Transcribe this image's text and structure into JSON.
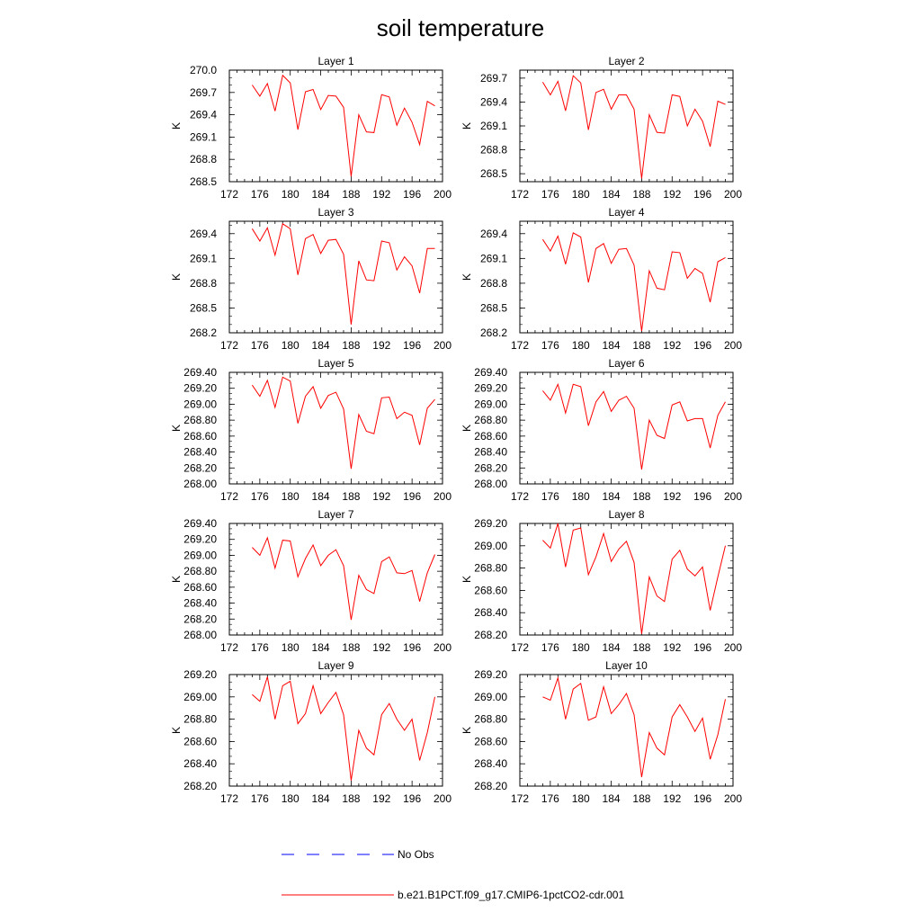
{
  "title": "soil temperature",
  "legend": [
    {
      "label": "No Obs",
      "color": "#0000ff",
      "dash": "dashed"
    },
    {
      "label": "b.e21.B1PCT.f09_g17.CMIP6-1pctCO2-cdr.001",
      "color": "#ff0000",
      "dash": "solid"
    }
  ],
  "chart_data": [
    {
      "type": "line",
      "title": "Layer 1",
      "ylabel": "K",
      "xlim": [
        172,
        200
      ],
      "ylim": [
        268.5,
        270.0
      ],
      "xticks": [
        "172",
        "176",
        "180",
        "184",
        "188",
        "192",
        "196",
        "200"
      ],
      "yticks": [
        "268.5",
        "268.8",
        "269.1",
        "269.4",
        "269.7",
        "270.0"
      ],
      "series": [
        {
          "name": "b.e21.B1PCT.f09_g17.CMIP6-1pctCO2-cdr.001",
          "color": "#ff0000",
          "x": [
            175,
            176,
            177,
            178,
            179,
            180,
            181,
            182,
            183,
            184,
            185,
            186,
            187,
            188,
            189,
            190,
            191,
            192,
            193,
            194,
            195,
            196,
            197,
            198,
            199
          ],
          "y": [
            269.8,
            269.65,
            269.82,
            269.45,
            269.93,
            269.83,
            269.2,
            269.71,
            269.74,
            269.47,
            269.66,
            269.65,
            269.5,
            268.57,
            269.4,
            269.17,
            269.16,
            269.67,
            269.64,
            269.26,
            269.49,
            269.3,
            269.0,
            269.58,
            269.52
          ]
        }
      ]
    },
    {
      "type": "line",
      "title": "Layer 2",
      "ylabel": "K",
      "xlim": [
        172,
        200
      ],
      "ylim": [
        268.4,
        269.8
      ],
      "xticks": [
        "172",
        "176",
        "180",
        "184",
        "188",
        "192",
        "196",
        "200"
      ],
      "yticks": [
        "268.5",
        "268.8",
        "269.1",
        "269.4",
        "269.7"
      ],
      "series": [
        {
          "name": "b.e21.B1PCT.f09_g17.CMIP6-1pctCO2-cdr.001",
          "color": "#ff0000",
          "x": [
            175,
            176,
            177,
            178,
            179,
            180,
            181,
            182,
            183,
            184,
            185,
            186,
            187,
            188,
            189,
            190,
            191,
            192,
            193,
            194,
            195,
            196,
            197,
            198,
            199
          ],
          "y": [
            269.65,
            269.49,
            269.66,
            269.29,
            269.73,
            269.64,
            269.05,
            269.52,
            269.56,
            269.31,
            269.49,
            269.49,
            269.31,
            268.44,
            269.24,
            269.02,
            269.01,
            269.49,
            269.47,
            269.1,
            269.31,
            269.16,
            268.84,
            269.41,
            269.37
          ]
        }
      ]
    },
    {
      "type": "line",
      "title": "Layer 3",
      "ylabel": "K",
      "xlim": [
        172,
        200
      ],
      "ylim": [
        268.2,
        269.55
      ],
      "xticks": [
        "172",
        "176",
        "180",
        "184",
        "188",
        "192",
        "196",
        "200"
      ],
      "yticks": [
        "268.2",
        "268.5",
        "268.8",
        "269.1",
        "269.4"
      ],
      "series": [
        {
          "name": "b.e21.B1PCT.f09_g17.CMIP6-1pctCO2-cdr.001",
          "color": "#ff0000",
          "x": [
            175,
            176,
            177,
            178,
            179,
            180,
            181,
            182,
            183,
            184,
            185,
            186,
            187,
            188,
            189,
            190,
            191,
            192,
            193,
            194,
            195,
            196,
            197,
            198,
            199
          ],
          "y": [
            269.46,
            269.31,
            269.47,
            269.14,
            269.52,
            269.46,
            268.9,
            269.34,
            269.39,
            269.16,
            269.32,
            269.33,
            269.15,
            268.3,
            269.07,
            268.84,
            268.83,
            269.31,
            269.29,
            268.96,
            269.12,
            269.01,
            268.68,
            269.22,
            269.22
          ]
        }
      ]
    },
    {
      "type": "line",
      "title": "Layer 4",
      "ylabel": "K",
      "xlim": [
        172,
        200
      ],
      "ylim": [
        268.2,
        269.55
      ],
      "xticks": [
        "172",
        "176",
        "180",
        "184",
        "188",
        "192",
        "196",
        "200"
      ],
      "yticks": [
        "268.2",
        "268.5",
        "268.8",
        "269.1",
        "269.4"
      ],
      "series": [
        {
          "name": "b.e21.B1PCT.f09_g17.CMIP6-1pctCO2-cdr.001",
          "color": "#ff0000",
          "x": [
            175,
            176,
            177,
            178,
            179,
            180,
            181,
            182,
            183,
            184,
            185,
            186,
            187,
            188,
            189,
            190,
            191,
            192,
            193,
            194,
            195,
            196,
            197,
            198,
            199
          ],
          "y": [
            269.33,
            269.19,
            269.37,
            269.03,
            269.41,
            269.36,
            268.81,
            269.22,
            269.28,
            269.04,
            269.21,
            269.22,
            269.02,
            268.22,
            268.95,
            268.74,
            268.72,
            269.18,
            269.17,
            268.86,
            268.98,
            268.92,
            268.57,
            269.06,
            269.11
          ]
        }
      ]
    },
    {
      "type": "line",
      "title": "Layer 5",
      "ylabel": "K",
      "xlim": [
        172,
        200
      ],
      "ylim": [
        268.0,
        269.4
      ],
      "xticks": [
        "172",
        "176",
        "180",
        "184",
        "188",
        "192",
        "196",
        "200"
      ],
      "yticks": [
        "268.00",
        "268.20",
        "268.40",
        "268.60",
        "268.80",
        "269.00",
        "269.20",
        "269.40"
      ],
      "series": [
        {
          "name": "b.e21.B1PCT.f09_g17.CMIP6-1pctCO2-cdr.001",
          "color": "#ff0000",
          "x": [
            175,
            176,
            177,
            178,
            179,
            180,
            181,
            182,
            183,
            184,
            185,
            186,
            187,
            188,
            189,
            190,
            191,
            192,
            193,
            194,
            195,
            196,
            197,
            198,
            199
          ],
          "y": [
            269.24,
            269.1,
            269.3,
            268.96,
            269.34,
            269.29,
            268.76,
            269.1,
            269.22,
            268.95,
            269.11,
            269.15,
            268.94,
            268.19,
            268.87,
            268.66,
            268.63,
            269.08,
            269.09,
            268.82,
            268.9,
            268.86,
            268.49,
            268.95,
            269.06
          ]
        }
      ]
    },
    {
      "type": "line",
      "title": "Layer 6",
      "ylabel": "K",
      "xlim": [
        172,
        200
      ],
      "ylim": [
        268.0,
        269.4
      ],
      "xticks": [
        "172",
        "176",
        "180",
        "184",
        "188",
        "192",
        "196",
        "200"
      ],
      "yticks": [
        "268.00",
        "268.20",
        "268.40",
        "268.60",
        "268.80",
        "269.00",
        "269.20",
        "269.40"
      ],
      "series": [
        {
          "name": "b.e21.B1PCT.f09_g17.CMIP6-1pctCO2-cdr.001",
          "color": "#ff0000",
          "x": [
            175,
            176,
            177,
            178,
            179,
            180,
            181,
            182,
            183,
            184,
            185,
            186,
            187,
            188,
            189,
            190,
            191,
            192,
            193,
            194,
            195,
            196,
            197,
            198,
            199
          ],
          "y": [
            269.17,
            269.05,
            269.25,
            268.89,
            269.25,
            269.22,
            268.73,
            269.03,
            269.16,
            268.91,
            269.05,
            269.1,
            268.95,
            268.18,
            268.8,
            268.61,
            268.57,
            268.99,
            269.03,
            268.79,
            268.82,
            268.82,
            268.45,
            268.86,
            269.03
          ]
        }
      ]
    },
    {
      "type": "line",
      "title": "Layer 7",
      "ylabel": "K",
      "xlim": [
        172,
        200
      ],
      "ylim": [
        268.0,
        269.4
      ],
      "xticks": [
        "172",
        "176",
        "180",
        "184",
        "188",
        "192",
        "196",
        "200"
      ],
      "yticks": [
        "268.00",
        "268.20",
        "268.40",
        "268.60",
        "268.80",
        "269.00",
        "269.20",
        "269.40"
      ],
      "series": [
        {
          "name": "b.e21.B1PCT.f09_g17.CMIP6-1pctCO2-cdr.001",
          "color": "#ff0000",
          "x": [
            175,
            176,
            177,
            178,
            179,
            180,
            181,
            182,
            183,
            184,
            185,
            186,
            187,
            188,
            189,
            190,
            191,
            192,
            193,
            194,
            195,
            196,
            197,
            198,
            199
          ],
          "y": [
            269.1,
            269.0,
            269.22,
            268.84,
            269.19,
            269.18,
            268.73,
            268.96,
            269.13,
            268.87,
            269.0,
            269.07,
            268.87,
            268.19,
            268.75,
            268.57,
            268.52,
            268.92,
            268.98,
            268.78,
            268.77,
            268.81,
            268.42,
            268.78,
            269.01
          ]
        }
      ]
    },
    {
      "type": "line",
      "title": "Layer 8",
      "ylabel": "K",
      "xlim": [
        172,
        200
      ],
      "ylim": [
        268.2,
        269.2
      ],
      "xticks": [
        "172",
        "176",
        "180",
        "184",
        "188",
        "192",
        "196",
        "200"
      ],
      "yticks": [
        "268.20",
        "268.40",
        "268.60",
        "268.80",
        "269.00",
        "269.20"
      ],
      "series": [
        {
          "name": "b.e21.B1PCT.f09_g17.CMIP6-1pctCO2-cdr.001",
          "color": "#ff0000",
          "x": [
            175,
            176,
            177,
            178,
            179,
            180,
            181,
            182,
            183,
            184,
            185,
            186,
            187,
            188,
            189,
            190,
            191,
            192,
            193,
            194,
            195,
            196,
            197,
            198,
            199
          ],
          "y": [
            269.05,
            268.98,
            269.2,
            268.81,
            269.14,
            269.16,
            268.74,
            268.9,
            269.11,
            268.86,
            268.97,
            269.04,
            268.85,
            268.21,
            268.72,
            268.55,
            268.5,
            268.88,
            268.96,
            268.79,
            268.73,
            268.81,
            268.42,
            268.72,
            269.0
          ]
        }
      ]
    },
    {
      "type": "line",
      "title": "Layer 9",
      "ylabel": "K",
      "xlim": [
        172,
        200
      ],
      "ylim": [
        268.2,
        269.2
      ],
      "xticks": [
        "172",
        "176",
        "180",
        "184",
        "188",
        "192",
        "196",
        "200"
      ],
      "yticks": [
        "268.20",
        "268.40",
        "268.60",
        "268.80",
        "269.00",
        "269.20"
      ],
      "series": [
        {
          "name": "b.e21.B1PCT.f09_g17.CMIP6-1pctCO2-cdr.001",
          "color": "#ff0000",
          "x": [
            175,
            176,
            177,
            178,
            179,
            180,
            181,
            182,
            183,
            184,
            185,
            186,
            187,
            188,
            189,
            190,
            191,
            192,
            193,
            194,
            195,
            196,
            197,
            198,
            199
          ],
          "y": [
            269.02,
            268.96,
            269.18,
            268.8,
            269.1,
            269.14,
            268.76,
            268.85,
            269.1,
            268.85,
            268.95,
            269.04,
            268.84,
            268.25,
            268.7,
            268.54,
            268.48,
            268.84,
            268.94,
            268.8,
            268.7,
            268.8,
            268.43,
            268.68,
            269.0
          ]
        }
      ]
    },
    {
      "type": "line",
      "title": "Layer 10",
      "ylabel": "K",
      "xlim": [
        172,
        200
      ],
      "ylim": [
        268.2,
        269.2
      ],
      "xticks": [
        "172",
        "176",
        "180",
        "184",
        "188",
        "192",
        "196",
        "200"
      ],
      "yticks": [
        "268.20",
        "268.40",
        "268.60",
        "268.80",
        "269.00",
        "269.20"
      ],
      "series": [
        {
          "name": "b.e21.B1PCT.f09_g17.CMIP6-1pctCO2-cdr.001",
          "color": "#ff0000",
          "x": [
            175,
            176,
            177,
            178,
            179,
            180,
            181,
            182,
            183,
            184,
            185,
            186,
            187,
            188,
            189,
            190,
            191,
            192,
            193,
            194,
            195,
            196,
            197,
            198,
            199
          ],
          "y": [
            269.0,
            268.97,
            269.17,
            268.8,
            269.07,
            269.12,
            268.79,
            268.82,
            269.09,
            268.85,
            268.93,
            269.03,
            268.84,
            268.28,
            268.68,
            268.54,
            268.48,
            268.82,
            268.93,
            268.82,
            268.69,
            268.81,
            268.44,
            268.66,
            268.98
          ]
        }
      ]
    }
  ]
}
